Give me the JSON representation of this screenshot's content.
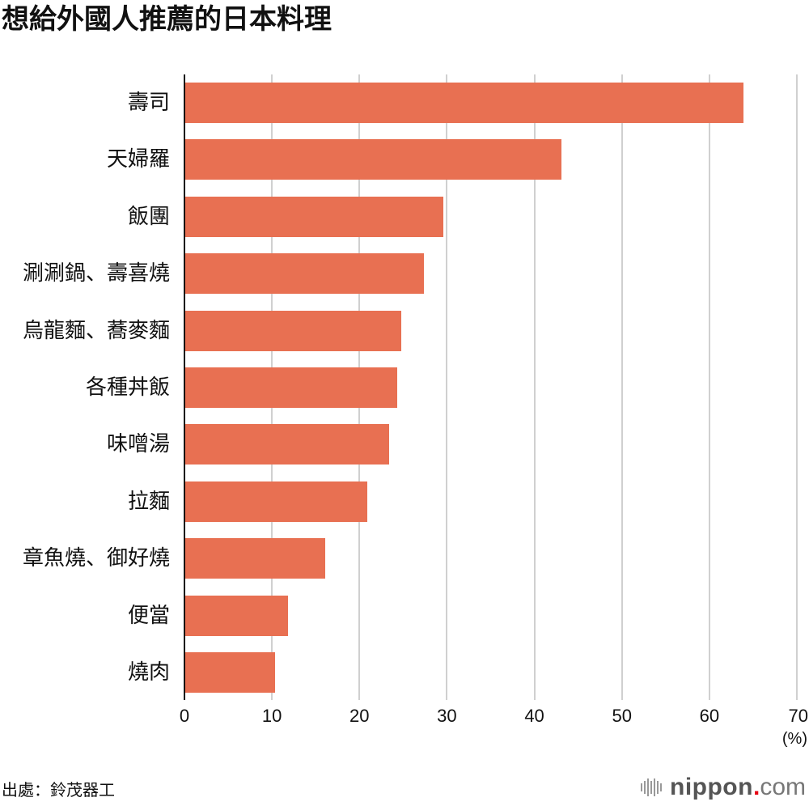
{
  "title": "想給外國人推薦的日本料理",
  "source": "出處：鈴茂器工",
  "logo": {
    "brand": "nippon",
    "dot": ".",
    "tld": "com"
  },
  "colors": {
    "bar": "#E87052",
    "grid": "#D0D0D0",
    "axis": "#111111",
    "logo_dot": "#E60012"
  },
  "chart_data": {
    "type": "bar",
    "orientation": "horizontal",
    "title": "想給外國人推薦的日本料理",
    "xlabel": "(%)",
    "ylabel": "",
    "xlim": [
      0,
      70
    ],
    "xticks": [
      0,
      10,
      20,
      30,
      40,
      50,
      60,
      70
    ],
    "grid": true,
    "categories": [
      "壽司",
      "天婦羅",
      "飯團",
      "涮涮鍋、壽喜燒",
      "烏龍麵、蕎麥麵",
      "各種丼飯",
      "味噌湯",
      "拉麵",
      "章魚燒、御好燒",
      "便當",
      "燒肉"
    ],
    "values": [
      63.8,
      43.0,
      29.5,
      27.3,
      24.7,
      24.2,
      23.3,
      20.8,
      16.0,
      11.7,
      10.3
    ],
    "source": "出處：鈴茂器工"
  }
}
